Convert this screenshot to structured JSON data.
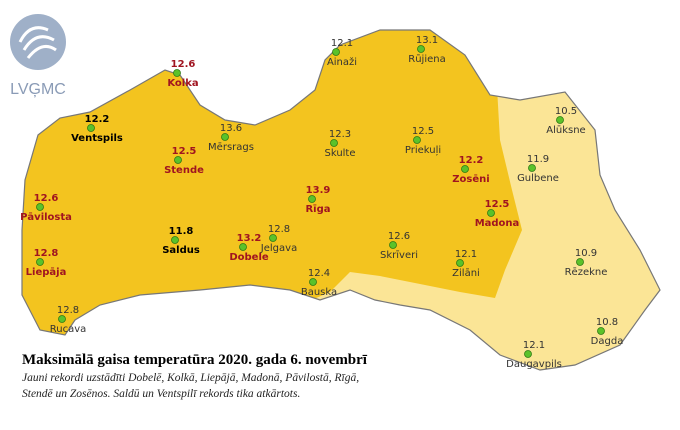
{
  "logo": "LVĢMC",
  "title": "Maksimālā gaisa temperatūra 2020. gada 6. novembrī",
  "subtitle_lines": [
    "Jauni rekordi uzstādīti Dobelē, Kolkā, Liepājā, Madonā, Pāvilostā, Rīgā,",
    "Stendē un Zosēnos. Saldū un Ventspilī rekords tika atkārtots."
  ],
  "stations": [
    {
      "name": "Kolka",
      "value": 12.6,
      "color": "#a01420",
      "bold": true
    },
    {
      "name": "Ventspils",
      "value": 12.2,
      "color": "#000000",
      "bold": true
    },
    {
      "name": "Mērsrags",
      "value": 13.6,
      "color": "#333333",
      "bold": false
    },
    {
      "name": "Stende",
      "value": 12.5,
      "color": "#a01420",
      "bold": true
    },
    {
      "name": "Pāvilosta",
      "value": 12.6,
      "color": "#a01420",
      "bold": true
    },
    {
      "name": "Liepāja",
      "value": 12.8,
      "color": "#a01420",
      "bold": true
    },
    {
      "name": "Saldus",
      "value": 11.8,
      "color": "#000000",
      "bold": true
    },
    {
      "name": "Dobele",
      "value": 13.2,
      "color": "#a01420",
      "bold": true
    },
    {
      "name": "Jelgava",
      "value": 12.8,
      "color": "#333333",
      "bold": false
    },
    {
      "name": "Rīga",
      "value": 13.9,
      "color": "#a01420",
      "bold": true
    },
    {
      "name": "Bauska",
      "value": 12.4,
      "color": "#333333",
      "bold": false
    },
    {
      "name": "Rucava",
      "value": 12.8,
      "color": "#333333",
      "bold": false
    },
    {
      "name": "Ainaži",
      "value": 12.1,
      "color": "#333333",
      "bold": false
    },
    {
      "name": "Rūjiena",
      "value": 13.1,
      "color": "#333333",
      "bold": false
    },
    {
      "name": "Skulte",
      "value": 12.3,
      "color": "#333333",
      "bold": false
    },
    {
      "name": "Priekuļi",
      "value": 12.5,
      "color": "#333333",
      "bold": false
    },
    {
      "name": "Zosēni",
      "value": 12.2,
      "color": "#a01420",
      "bold": true
    },
    {
      "name": "Madona",
      "value": 12.5,
      "color": "#a01420",
      "bold": true
    },
    {
      "name": "Skrīveri",
      "value": 12.6,
      "color": "#333333",
      "bold": false
    },
    {
      "name": "Zilāni",
      "value": 12.1,
      "color": "#333333",
      "bold": false
    },
    {
      "name": "Alūksne",
      "value": 10.5,
      "color": "#333333",
      "bold": false
    },
    {
      "name": "Gulbene",
      "value": 11.9,
      "color": "#333333",
      "bold": false
    },
    {
      "name": "Rēzekne",
      "value": 10.9,
      "color": "#333333",
      "bold": false
    },
    {
      "name": "Dagda",
      "value": 10.8,
      "color": "#333333",
      "bold": false
    },
    {
      "name": "Daugavpils",
      "value": 12.1,
      "color": "#333333",
      "bold": false
    }
  ]
}
